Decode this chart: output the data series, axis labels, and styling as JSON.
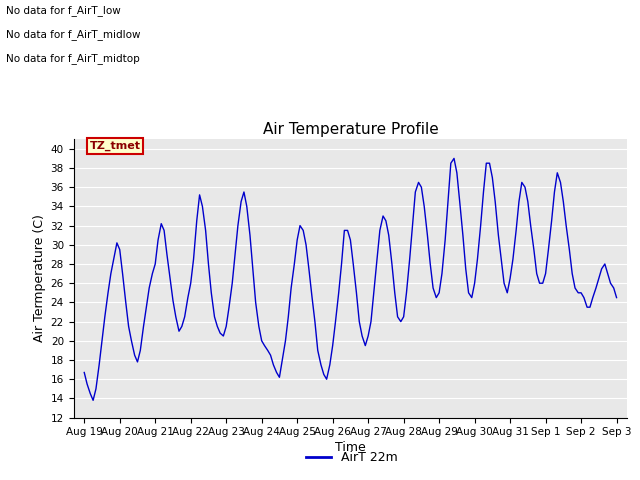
{
  "title": "Air Temperature Profile",
  "xlabel": "Time",
  "ylabel": "Air Termperature (C)",
  "ylim": [
    12,
    41
  ],
  "yticks": [
    12,
    14,
    16,
    18,
    20,
    22,
    24,
    26,
    28,
    30,
    32,
    34,
    36,
    38,
    40
  ],
  "bg_color": "#e8e8e8",
  "line_color": "#0000cc",
  "legend_label": "AirT 22m",
  "text_lines": [
    "No data for f_AirT_low",
    "No data for f_AirT_midlow",
    "No data for f_AirT_midtop"
  ],
  "tz_label": "TZ_tmet",
  "x_tick_labels": [
    "Aug 19",
    "Aug 20",
    "Aug 21",
    "Aug 22",
    "Aug 23",
    "Aug 24",
    "Aug 25",
    "Aug 26",
    "Aug 27",
    "Aug 28",
    "Aug 29",
    "Aug 30",
    "Aug 31",
    "Sep 1",
    "Sep 2",
    "Sep 3"
  ],
  "time_data": [
    0,
    0.08,
    0.17,
    0.25,
    0.33,
    0.42,
    0.5,
    0.58,
    0.67,
    0.75,
    0.83,
    0.92,
    1.0,
    1.08,
    1.17,
    1.25,
    1.33,
    1.42,
    1.5,
    1.58,
    1.67,
    1.75,
    1.83,
    1.92,
    2.0,
    2.08,
    2.17,
    2.25,
    2.33,
    2.42,
    2.5,
    2.58,
    2.67,
    2.75,
    2.83,
    2.92,
    3.0,
    3.08,
    3.17,
    3.25,
    3.33,
    3.42,
    3.5,
    3.58,
    3.67,
    3.75,
    3.83,
    3.92,
    4.0,
    4.08,
    4.17,
    4.25,
    4.33,
    4.42,
    4.5,
    4.58,
    4.67,
    4.75,
    4.83,
    4.92,
    5.0,
    5.08,
    5.17,
    5.25,
    5.33,
    5.42,
    5.5,
    5.58,
    5.67,
    5.75,
    5.83,
    5.92,
    6.0,
    6.08,
    6.17,
    6.25,
    6.33,
    6.42,
    6.5,
    6.58,
    6.67,
    6.75,
    6.83,
    6.92,
    7.0,
    7.08,
    7.17,
    7.25,
    7.33,
    7.42,
    7.5,
    7.58,
    7.67,
    7.75,
    7.83,
    7.92,
    8.0,
    8.08,
    8.17,
    8.25,
    8.33,
    8.42,
    8.5,
    8.58,
    8.67,
    8.75,
    8.83,
    8.92,
    9.0,
    9.08,
    9.17,
    9.25,
    9.33,
    9.42,
    9.5,
    9.58,
    9.67,
    9.75,
    9.83,
    9.92,
    10.0,
    10.08,
    10.17,
    10.25,
    10.33,
    10.42,
    10.5,
    10.58,
    10.67,
    10.75,
    10.83,
    10.92,
    11.0,
    11.08,
    11.17,
    11.25,
    11.33,
    11.42,
    11.5,
    11.58,
    11.67,
    11.75,
    11.83,
    11.92,
    12.0,
    12.08,
    12.17,
    12.25,
    12.33,
    12.42,
    12.5,
    12.58,
    12.67,
    12.75,
    12.83,
    12.92,
    13.0,
    13.08,
    13.17,
    13.25,
    13.33,
    13.42,
    13.5,
    13.58,
    13.67,
    13.75,
    13.83,
    13.92,
    14.0,
    14.08,
    14.17,
    14.25,
    14.33,
    14.42,
    14.5,
    14.58,
    14.67,
    14.75,
    14.83,
    14.92,
    15.0
  ],
  "temp_data": [
    16.7,
    15.5,
    14.5,
    13.8,
    15.0,
    17.5,
    20.0,
    22.5,
    25.0,
    27.0,
    28.5,
    30.2,
    29.5,
    27.0,
    24.0,
    21.5,
    20.0,
    18.5,
    17.8,
    19.0,
    21.5,
    23.5,
    25.5,
    27.0,
    28.0,
    30.5,
    32.2,
    31.5,
    29.0,
    26.5,
    24.2,
    22.5,
    21.0,
    21.5,
    22.5,
    24.5,
    26.0,
    28.5,
    32.5,
    35.2,
    34.0,
    31.5,
    28.0,
    25.0,
    22.5,
    21.5,
    20.8,
    20.5,
    21.5,
    23.5,
    26.0,
    29.0,
    32.0,
    34.5,
    35.5,
    34.0,
    31.0,
    27.5,
    24.0,
    21.5,
    20.0,
    19.5,
    19.0,
    18.5,
    17.5,
    16.7,
    16.2,
    18.0,
    20.0,
    22.5,
    25.5,
    28.0,
    30.5,
    32.0,
    31.5,
    30.0,
    27.5,
    24.5,
    22.0,
    19.0,
    17.5,
    16.5,
    16.0,
    17.5,
    19.5,
    22.0,
    25.0,
    28.0,
    31.5,
    31.5,
    30.5,
    28.0,
    25.0,
    22.0,
    20.5,
    19.5,
    20.5,
    22.0,
    25.5,
    28.5,
    31.5,
    33.0,
    32.5,
    31.0,
    28.0,
    25.0,
    22.5,
    22.0,
    22.5,
    25.0,
    28.5,
    32.0,
    35.5,
    36.5,
    36.0,
    34.0,
    31.0,
    28.0,
    25.5,
    24.5,
    25.0,
    27.0,
    30.5,
    34.5,
    38.5,
    39.0,
    37.5,
    34.5,
    31.0,
    27.5,
    25.0,
    24.5,
    26.0,
    28.5,
    32.0,
    35.5,
    38.5,
    38.5,
    37.0,
    34.5,
    31.0,
    28.5,
    26.0,
    25.0,
    26.5,
    28.5,
    31.5,
    34.5,
    36.5,
    36.0,
    34.5,
    32.0,
    29.5,
    27.0,
    26.0,
    26.0,
    27.0,
    29.5,
    32.5,
    35.5,
    37.5,
    36.5,
    34.5,
    32.0,
    29.5,
    27.0,
    25.5,
    25.0,
    25.0,
    24.5,
    23.5,
    23.5,
    24.5,
    25.5,
    26.5,
    27.5,
    28.0,
    27.0,
    26.0,
    25.5,
    24.5
  ]
}
